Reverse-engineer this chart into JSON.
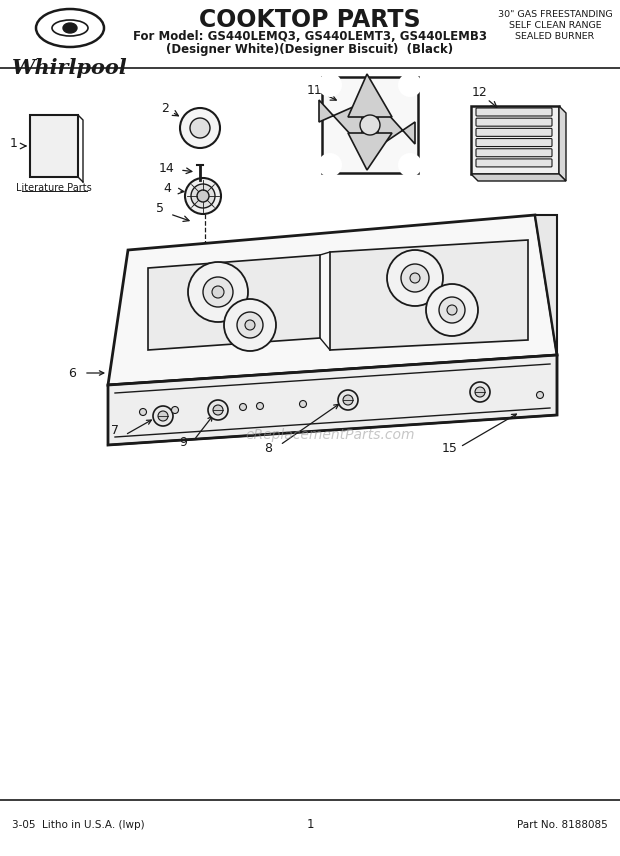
{
  "title": "COOKTOP PARTS",
  "subtitle_line1": "For Model: GS440LEMQ3, GS440LEMT3, GS440LEMB3",
  "subtitle_line2": "(Designer White)(Designer Biscuit)  (Black)",
  "top_right_line1": "30\" GAS FREESTANDING",
  "top_right_line2": "SELF CLEAN RANGE",
  "top_right_line3": "SEALED BURNER",
  "footer_left": "3-05  Litho in U.S.A. (lwp)",
  "footer_center": "1",
  "footer_right": "Part No. 8188085",
  "watermark": "eReplacementParts.com",
  "bg_color": "#ffffff",
  "line_color": "#1a1a1a"
}
